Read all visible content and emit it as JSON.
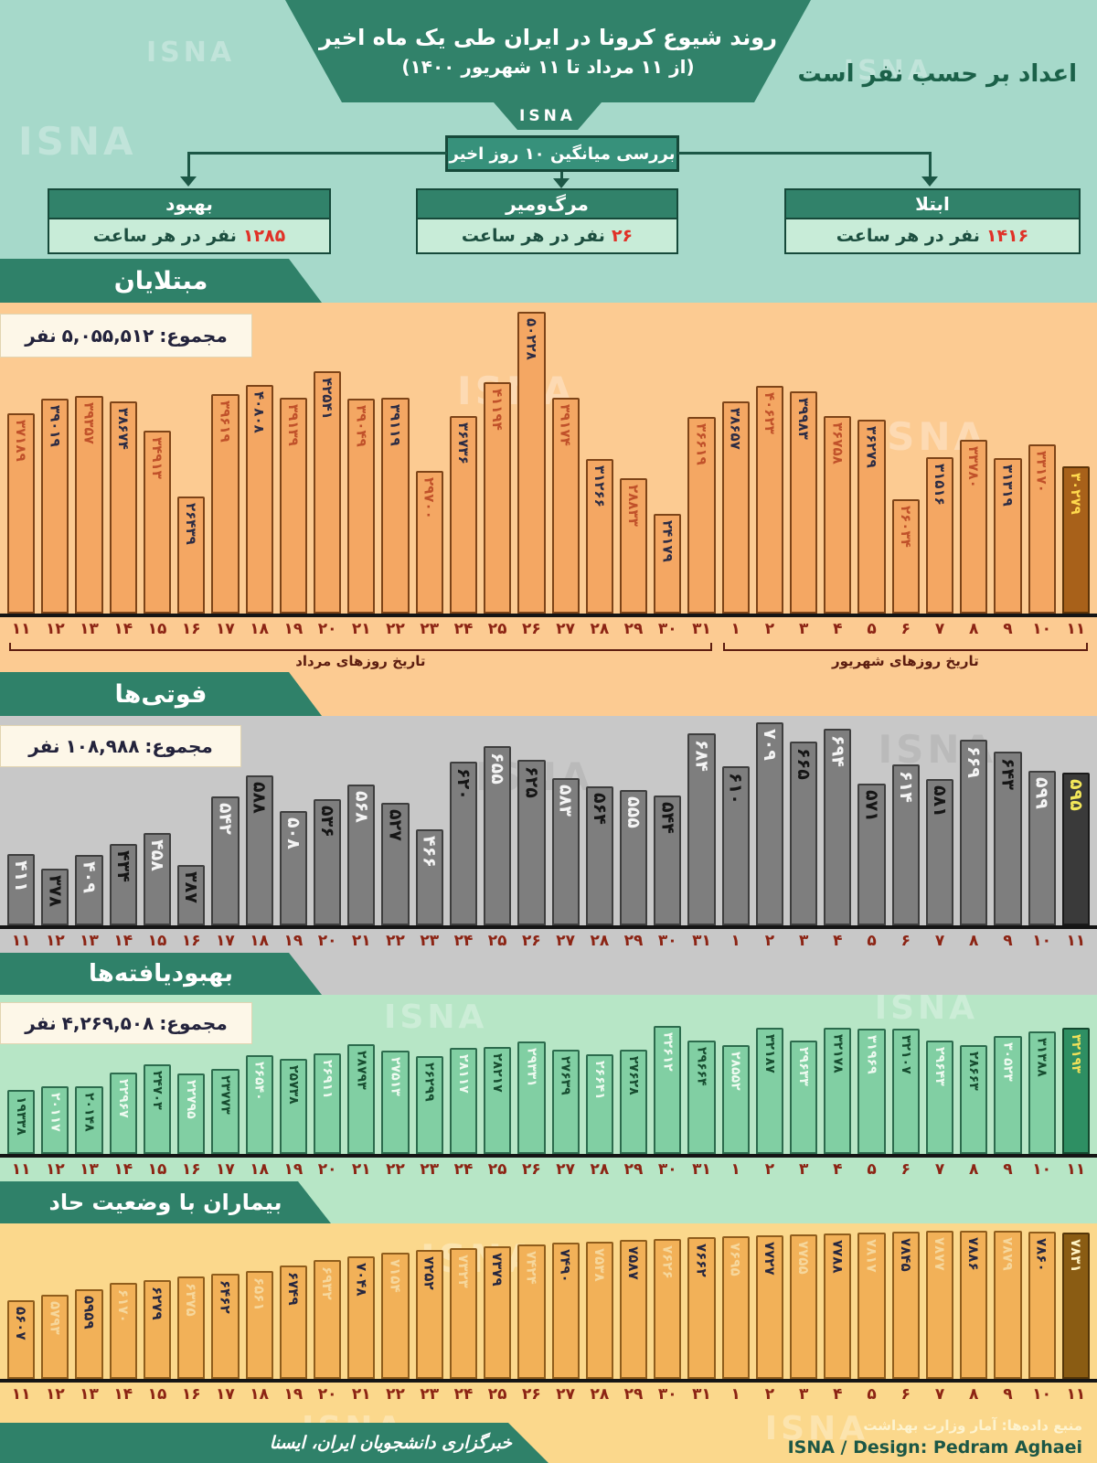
{
  "header": {
    "title": "روند شیوع کرونا در ایران طی یک ماه اخیر",
    "subtitle": "(از ۱۱ مرداد تا ۱۱ شهریور ۱۴۰۰)",
    "logo": "ISNA",
    "unit_note": "اعداد بر حسب نفر است"
  },
  "watermark": {
    "text": "ISNA"
  },
  "averages": {
    "box_title": "بررسی میانگین ۱۰ روز اخیر",
    "cards": [
      {
        "title": "ابتلا",
        "value": "۱۴۱۶",
        "unit": "نفر در هر ساعت"
      },
      {
        "title": "مرگ‌ومیر",
        "value": "۲۶",
        "unit": "نفر در هر ساعت"
      },
      {
        "title": "بهبود",
        "value": "۱۲۸۵",
        "unit": "نفر در هر ساعت"
      }
    ]
  },
  "axis": {
    "mordad_label": "تاریخ روزهای مرداد",
    "shahrivar_label": "تاریخ روزهای شهریور",
    "month_groups": [
      {
        "label": "تاریخ روزهای مرداد",
        "days": 21
      },
      {
        "label": "تاریخ روزهای شهریور",
        "days": 11
      }
    ]
  },
  "chart_data": [
    {
      "id": "infected",
      "type": "bar",
      "title": "مبتلایان",
      "total_label": "مجموع:",
      "total_value": "۵,۰۵۵,۵۱۲",
      "total_unit": "نفر",
      "colors": {
        "bar": "#f4a763",
        "highlight": "#a8611a",
        "background": "#fccb92"
      },
      "categories": [
        "۱۱",
        "۱۲",
        "۱۳",
        "۱۴",
        "۱۵",
        "۱۶",
        "۱۷",
        "۱۸",
        "۱۹",
        "۲۰",
        "۲۱",
        "۲۲",
        "۲۳",
        "۲۴",
        "۲۵",
        "۲۶",
        "۲۷",
        "۲۸",
        "۲۹",
        "۳۰",
        "۳۱",
        "۱",
        "۲",
        "۳",
        "۴",
        "۵",
        "۶",
        "۷",
        "۸",
        "۹",
        "۱۰",
        "۱۱"
      ],
      "values": [
        37189,
        39019,
        39357,
        38674,
        34913,
        26439,
        39619,
        40808,
        39139,
        42541,
        39049,
        39119,
        29700,
        36736,
        41194,
        50228,
        39174,
        31266,
        28833,
        24179,
        36619,
        38657,
        40623,
        39983,
        36758,
        36279,
        26034,
        31516,
        33780,
        31319,
        33170,
        30279
      ],
      "highlight_last": true
    },
    {
      "id": "deaths",
      "type": "bar",
      "title": "فوتی‌ها",
      "total_label": "مجموع:",
      "total_value": "۱۰۸,۹۸۸",
      "total_unit": "نفر",
      "colors": {
        "bar": "#7e7e7e",
        "highlight": "#3a3a3a",
        "background": "#c8c8c8"
      },
      "categories": [
        "۱۱",
        "۱۲",
        "۱۳",
        "۱۴",
        "۱۵",
        "۱۶",
        "۱۷",
        "۱۸",
        "۱۹",
        "۲۰",
        "۲۱",
        "۲۲",
        "۲۳",
        "۲۴",
        "۲۵",
        "۲۶",
        "۲۷",
        "۲۸",
        "۲۹",
        "۳۰",
        "۳۱",
        "۱",
        "۲",
        "۳",
        "۴",
        "۵",
        "۶",
        "۷",
        "۸",
        "۹",
        "۱۰",
        "۱۱"
      ],
      "values": [
        411,
        378,
        409,
        434,
        458,
        387,
        542,
        588,
        508,
        536,
        568,
        527,
        466,
        620,
        655,
        625,
        583,
        564,
        555,
        544,
        684,
        610,
        709,
        665,
        694,
        571,
        614,
        581,
        669,
        643,
        599,
        595
      ],
      "highlight_last": true
    },
    {
      "id": "recovered",
      "type": "bar",
      "title": "بهبودیافته‌ها",
      "total_label": "مجموع:",
      "total_value": "۴,۲۶۹,۵۰۸",
      "total_unit": "نفر",
      "colors": {
        "bar": "#81cfa3",
        "highlight": "#2e8f63",
        "background": "#b7e6c6"
      },
      "categories": [
        "۱۱",
        "۱۲",
        "۱۳",
        "۱۴",
        "۱۵",
        "۱۶",
        "۱۷",
        "۱۸",
        "۱۹",
        "۲۰",
        "۲۱",
        "۲۲",
        "۲۳",
        "۲۴",
        "۲۵",
        "۲۶",
        "۲۷",
        "۲۸",
        "۲۹",
        "۳۰",
        "۳۱",
        "۱",
        "۲",
        "۳",
        "۴",
        "۵",
        "۶",
        "۷",
        "۸",
        "۹",
        "۱۰",
        "۱۱"
      ],
      "values": [
        19338,
        20117,
        20148,
        22967,
        24703,
        22795,
        23773,
        26540,
        25738,
        26911,
        28793,
        27513,
        26299,
        28117,
        28217,
        29331,
        27639,
        26641,
        27628,
        32612,
        29664,
        28552,
        32187,
        29633,
        32178,
        31969,
        32107,
        29643,
        28663,
        30523,
        31388,
        32193
      ],
      "highlight_last": true
    },
    {
      "id": "critical",
      "type": "bar",
      "title": "بیماران با وضعیت حاد",
      "colors": {
        "bar": "#f2b158",
        "highlight": "#8a5c13",
        "background": "#fbd88c"
      },
      "categories": [
        "۱۱",
        "۱۲",
        "۱۳",
        "۱۴",
        "۱۵",
        "۱۶",
        "۱۷",
        "۱۸",
        "۱۹",
        "۲۰",
        "۲۱",
        "۲۲",
        "۲۳",
        "۲۴",
        "۲۵",
        "۲۶",
        "۲۷",
        "۲۸",
        "۲۹",
        "۳۰",
        "۳۱",
        "۱",
        "۲",
        "۳",
        "۴",
        "۵",
        "۶",
        "۷",
        "۸",
        "۹",
        "۱۰",
        "۱۱"
      ],
      "values": [
        5607,
        5793,
        5959,
        6170,
        6279,
        6375,
        6462,
        6561,
        6749,
        6932,
        7048,
        7154,
        7252,
        7323,
        7379,
        7424,
        7490,
        7538,
        7587,
        7626,
        7662,
        7695,
        7727,
        7755,
        7788,
        7817,
        7845,
        7877,
        7886,
        7879,
        7860,
        7831
      ],
      "highlight_last": true
    }
  ],
  "footer": {
    "source": "منبع داده‌ها: آمار وزارت بهداشت",
    "design": "ISNA / Design: Pedram Aghaei",
    "signature": "خبرگزاری دانشجویان ایران، ایسنا"
  }
}
